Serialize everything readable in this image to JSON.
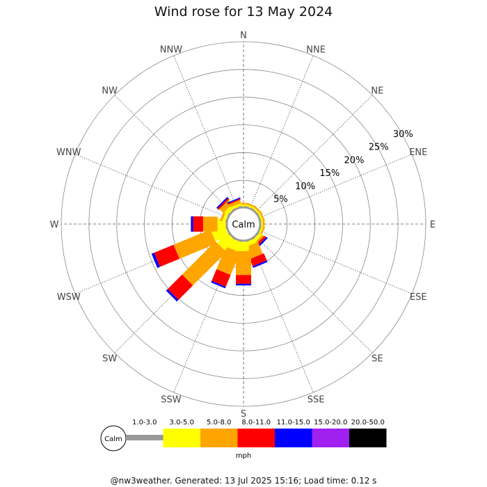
{
  "page": {
    "title": "Wind rose for 13 May 2024",
    "footer": "@nw3weather. Generated: 13 Jul 2025 15:16; Load time: 0.12 s"
  },
  "chart_data": {
    "type": "windrose",
    "title": "Wind rose for 13 May 2024",
    "directions": [
      "N",
      "NNE",
      "NE",
      "ENE",
      "E",
      "ESE",
      "SE",
      "SSE",
      "S",
      "SSW",
      "SW",
      "WSW",
      "W",
      "WNW",
      "NW",
      "NNW"
    ],
    "radial_ticks": [
      "5%",
      "10%",
      "15%",
      "20%",
      "25%",
      "30%"
    ],
    "radial_max_percent": 30,
    "calm_label": "Calm",
    "unit": "mph",
    "speed_bins": [
      {
        "label": "1.0-3.0",
        "color": "#999999"
      },
      {
        "label": "3.0-5.0",
        "color": "#ffff00"
      },
      {
        "label": "5.0-8.0",
        "color": "#ffa500"
      },
      {
        "label": "8.0-11.0",
        "color": "#ff0000"
      },
      {
        "label": "11.0-15.0",
        "color": "#0000ff"
      },
      {
        "label": "15.0-20.0",
        "color": "#a020f0"
      },
      {
        "label": "20.0-50.0",
        "color": "#000000"
      }
    ],
    "frequencies_percent": {
      "N": [
        0.3,
        0.3,
        0.3,
        0,
        0,
        0,
        0
      ],
      "NNE": [
        0.3,
        0.3,
        0.3,
        0,
        0,
        0,
        0
      ],
      "NE": [
        0.3,
        0.3,
        0.3,
        0,
        0,
        0,
        0
      ],
      "ENE": [
        0.3,
        0.3,
        0.3,
        0,
        0,
        0,
        0
      ],
      "E": [
        0.3,
        0.3,
        0.3,
        0,
        0,
        0,
        0
      ],
      "ESE": [
        0.3,
        0.3,
        0.3,
        0,
        0,
        0,
        0
      ],
      "SE": [
        0.3,
        0.6,
        0.4,
        0.4,
        0.3,
        0,
        0
      ],
      "SSE": [
        0.3,
        0.8,
        2.3,
        1.4,
        0.3,
        0,
        0
      ],
      "S": [
        0.3,
        1.7,
        4.3,
        1.6,
        0.3,
        0,
        0
      ],
      "SSW": [
        0.3,
        1.8,
        4.4,
        2.3,
        0.3,
        0,
        0
      ],
      "SW": [
        0.3,
        2.6,
        8.5,
        3.7,
        0.4,
        0,
        0
      ],
      "WSW": [
        0.3,
        2.7,
        7.2,
        3.8,
        0.5,
        0,
        0
      ],
      "W": [
        0.3,
        1.5,
        2.6,
        1.8,
        0.4,
        0,
        0
      ],
      "WNW": [
        0.3,
        0.6,
        0.4,
        0,
        0,
        0,
        0
      ],
      "NW": [
        0.3,
        0.8,
        1.0,
        0.3,
        0.25,
        0,
        0
      ],
      "NNW": [
        0.3,
        0.5,
        0.6,
        0.2,
        0.2,
        0,
        0
      ]
    }
  }
}
